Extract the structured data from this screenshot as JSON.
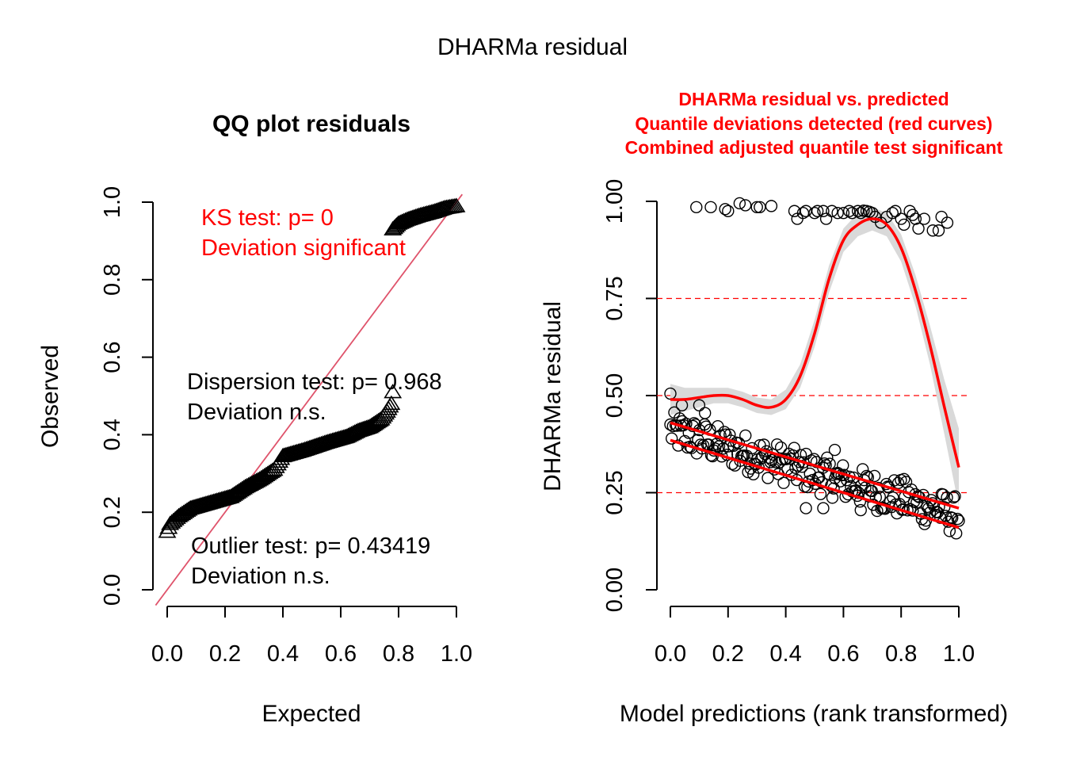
{
  "title": "DHARMa residual",
  "chart_data": [
    {
      "type": "scatter",
      "title": "QQ plot residuals",
      "xlabel": "Expected",
      "ylabel": "Observed",
      "xlim": [
        0,
        1
      ],
      "ylim": [
        0,
        1
      ],
      "xticks": [
        "0.0",
        "0.2",
        "0.4",
        "0.6",
        "0.8",
        "1.0"
      ],
      "yticks": [
        "0.0",
        "0.2",
        "0.4",
        "0.6",
        "0.8",
        "1.0"
      ],
      "reference_line": {
        "slope": 1,
        "intercept": 0,
        "color": "#df536b"
      },
      "marker": "triangle",
      "annotations": {
        "ks": [
          "KS test: p= 0",
          "Deviation  significant"
        ],
        "dispersion": [
          "Dispersion test: p= 0.968",
          "Deviation  n.s."
        ],
        "outlier": [
          "Outlier test: p= 0.43419",
          "Deviation  n.s."
        ]
      },
      "qq_segments": [
        {
          "x": [
            0.0,
            0.01,
            0.04,
            0.08,
            0.15,
            0.22,
            0.27,
            0.32,
            0.37,
            0.4,
            0.47,
            0.55,
            0.62,
            0.66,
            0.7,
            0.72,
            0.74,
            0.76,
            0.775,
            0.78
          ],
          "y": [
            0.15,
            0.17,
            0.19,
            0.21,
            0.225,
            0.24,
            0.265,
            0.285,
            0.31,
            0.345,
            0.36,
            0.38,
            0.395,
            0.41,
            0.42,
            0.43,
            0.44,
            0.46,
            0.48,
            0.51
          ]
        },
        {
          "x": [
            0.78,
            0.8,
            0.83,
            0.87,
            0.92,
            0.96,
            1.0
          ],
          "y": [
            0.93,
            0.945,
            0.955,
            0.965,
            0.975,
            0.985,
            0.99
          ]
        }
      ]
    },
    {
      "type": "scatter",
      "title": "DHARMa residual vs. predicted",
      "subtitle_lines": [
        "Quantile deviations detected (red curves)",
        "Combined adjusted quantile test significant"
      ],
      "xlabel": "Model predictions (rank transformed)",
      "ylabel": "DHARMa residual",
      "xlim": [
        0,
        1
      ],
      "ylim": [
        0,
        1
      ],
      "xticks": [
        "0.0",
        "0.2",
        "0.4",
        "0.6",
        "0.8",
        "1.0"
      ],
      "yticks": [
        "0.00",
        "0.25",
        "0.50",
        "0.75",
        "1.00"
      ],
      "reference_lines_y": [
        0.25,
        0.5,
        0.75
      ],
      "upper_points": [
        [
          0.09,
          0.985
        ],
        [
          0.14,
          0.985
        ],
        [
          0.19,
          0.98
        ],
        [
          0.2,
          0.975
        ],
        [
          0.24,
          0.995
        ],
        [
          0.26,
          0.99
        ],
        [
          0.3,
          0.985
        ],
        [
          0.31,
          0.985
        ],
        [
          0.35,
          0.988
        ],
        [
          0.43,
          0.975
        ],
        [
          0.44,
          0.955
        ],
        [
          0.46,
          0.97
        ],
        [
          0.47,
          0.975
        ],
        [
          0.5,
          0.97
        ],
        [
          0.51,
          0.975
        ],
        [
          0.53,
          0.975
        ],
        [
          0.54,
          0.955
        ],
        [
          0.56,
          0.975
        ],
        [
          0.58,
          0.97
        ],
        [
          0.6,
          0.97
        ],
        [
          0.62,
          0.975
        ],
        [
          0.63,
          0.97
        ],
        [
          0.65,
          0.975
        ],
        [
          0.66,
          0.97
        ],
        [
          0.67,
          0.976
        ],
        [
          0.68,
          0.975
        ],
        [
          0.69,
          0.973
        ],
        [
          0.7,
          0.97
        ],
        [
          0.71,
          0.96
        ],
        [
          0.73,
          0.945
        ],
        [
          0.75,
          0.96
        ],
        [
          0.77,
          0.97
        ],
        [
          0.78,
          0.975
        ],
        [
          0.8,
          0.955
        ],
        [
          0.81,
          0.94
        ],
        [
          0.83,
          0.975
        ],
        [
          0.84,
          0.965
        ],
        [
          0.85,
          0.955
        ],
        [
          0.86,
          0.93
        ],
        [
          0.88,
          0.955
        ],
        [
          0.91,
          0.925
        ],
        [
          0.93,
          0.925
        ],
        [
          0.94,
          0.96
        ],
        [
          0.96,
          0.945
        ]
      ],
      "lower_trend": {
        "x0": 0.0,
        "y0_center": 0.41,
        "x1": 1.0,
        "y1_center": 0.19,
        "spread": 0.05,
        "n": 220
      },
      "lower_outliers": [
        [
          0.0,
          0.505
        ],
        [
          0.04,
          0.475
        ],
        [
          0.1,
          0.475
        ],
        [
          0.12,
          0.455
        ],
        [
          0.47,
          0.21
        ],
        [
          0.53,
          0.21
        ],
        [
          0.57,
          0.36
        ],
        [
          0.66,
          0.205
        ],
        [
          0.81,
          0.285
        ]
      ],
      "quantile_curves": [
        {
          "quantile": 0.75,
          "x": [
            0.0,
            0.05,
            0.1,
            0.15,
            0.2,
            0.25,
            0.3,
            0.35,
            0.4,
            0.45,
            0.5,
            0.55,
            0.6,
            0.65,
            0.7,
            0.75,
            0.8,
            0.85,
            0.9,
            0.95,
            1.0
          ],
          "y": [
            0.49,
            0.49,
            0.495,
            0.5,
            0.5,
            0.49,
            0.475,
            0.47,
            0.49,
            0.55,
            0.66,
            0.8,
            0.9,
            0.94,
            0.955,
            0.94,
            0.88,
            0.77,
            0.63,
            0.47,
            0.315
          ],
          "band": [
            0.04,
            0.03,
            0.025,
            0.02,
            0.02,
            0.02,
            0.02,
            0.02,
            0.025,
            0.03,
            0.035,
            0.035,
            0.03,
            0.03,
            0.03,
            0.03,
            0.035,
            0.04,
            0.05,
            0.07,
            0.1
          ]
        },
        {
          "quantile": 0.5,
          "x": [
            0.0,
            1.0
          ],
          "y": [
            0.43,
            0.21
          ]
        },
        {
          "quantile": 0.25,
          "x": [
            0.0,
            1.0
          ],
          "y": [
            0.385,
            0.16
          ]
        }
      ]
    }
  ]
}
